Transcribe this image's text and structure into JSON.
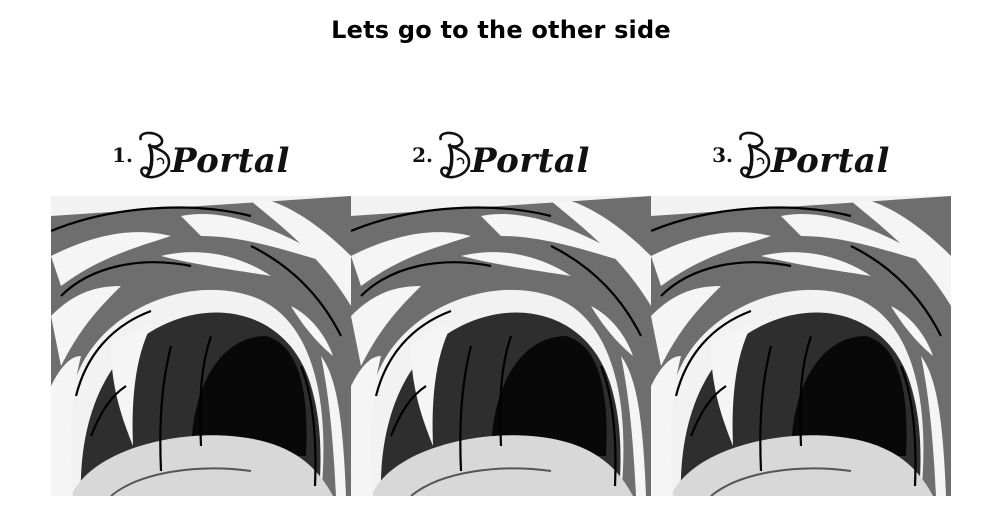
{
  "title": "Lets go to the other side",
  "portals": [
    {
      "number": "1.",
      "label": "Portal",
      "image_icon": "cave-tunnel-illustration"
    },
    {
      "number": "2.",
      "label": "Portal",
      "image_icon": "cave-tunnel-illustration"
    },
    {
      "number": "3.",
      "label": "Portal",
      "image_icon": "cave-tunnel-illustration"
    }
  ]
}
